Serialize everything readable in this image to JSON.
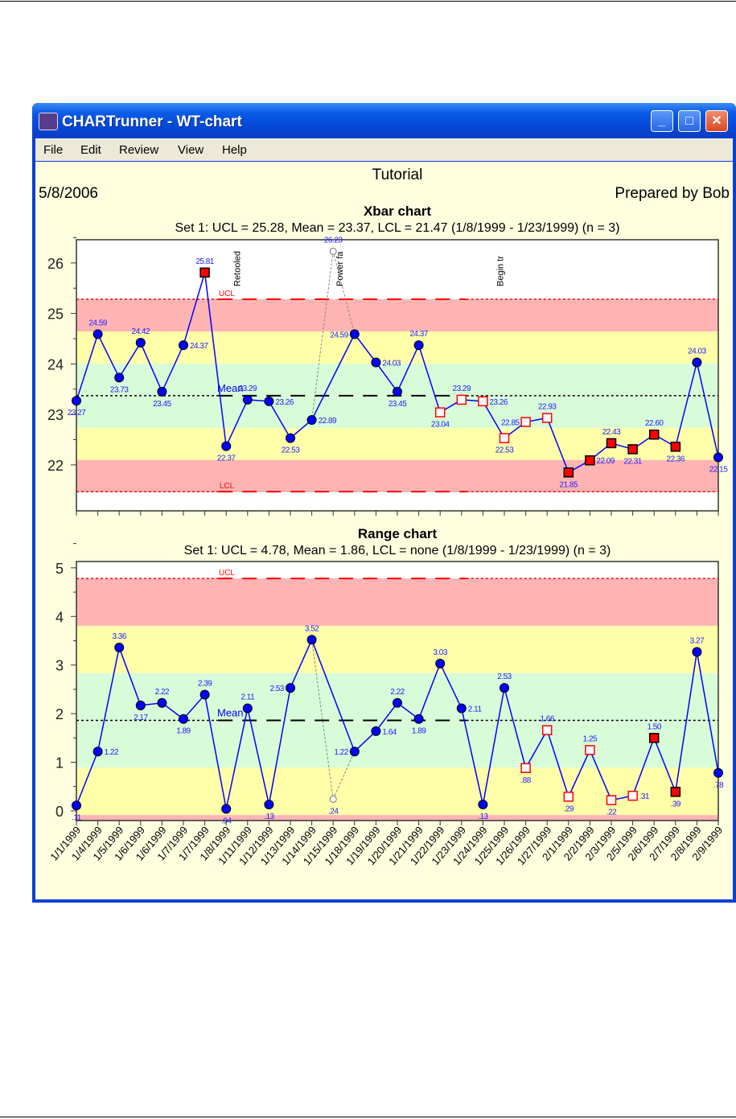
{
  "window": {
    "title": "CHARTrunner - WT-chart",
    "min_icon": "minimize-icon",
    "max_icon": "maximize-icon",
    "close_icon": "close-icon"
  },
  "menu": [
    "File",
    "Edit",
    "Review",
    "View",
    "Help"
  ],
  "header": {
    "title": "Tutorial",
    "date": "5/8/2006",
    "prepared_by": "Prepared by Bob"
  },
  "colors": {
    "zone_red": "#ffb4b4",
    "zone_yellow": "#ffffaa",
    "zone_green": "#d8fcd8",
    "line": "#0000ff",
    "point": "#0000ff",
    "limit": "#ff0000",
    "label": "#2020ff"
  },
  "chart_data": [
    {
      "type": "line",
      "title": "Xbar chart",
      "subtitle": "Set 1: UCL = 25.28, Mean = 23.37, LCL = 21.47 (1/8/1999 - 1/23/1999) (n = 3)",
      "ucl": 25.28,
      "mean": 23.37,
      "lcl": 21.47,
      "ucl_label": "UCL",
      "lcl_label": "LCL",
      "mean_label": "Mean",
      "ylim": [
        21.09,
        26.46
      ],
      "yticks": [
        "22",
        "23",
        "24",
        "25",
        "26"
      ],
      "values": [
        23.27,
        24.59,
        23.73,
        24.42,
        23.45,
        24.37,
        25.81,
        22.37,
        23.29,
        23.26,
        22.53,
        22.89,
        26.23,
        24.59,
        24.03,
        23.45,
        24.37,
        23.04,
        23.29,
        23.26,
        22.53,
        22.85,
        22.93,
        21.85,
        22.09,
        22.43,
        22.31,
        22.6,
        22.36,
        24.03,
        22.15
      ],
      "labels": [
        "23.27",
        "24.59",
        "23.73",
        "24.42",
        "23.45",
        "24.37",
        "25.81",
        "22.37",
        "23.29",
        "23.26",
        "22.53",
        "22.89",
        "26.23",
        "24.59",
        "24.03",
        "23.45",
        "24.37",
        "23.04",
        "23.29",
        "23.26",
        "22.53",
        "22.85",
        "22.93",
        "21.85",
        "22.09",
        "22.43",
        "22.31",
        "22.60",
        "22.36",
        "24.03",
        "22.15"
      ],
      "point_types": [
        "n",
        "n",
        "n",
        "n",
        "n",
        "n",
        "r",
        "n",
        "n",
        "n",
        "n",
        "n",
        "x",
        "n",
        "n",
        "n",
        "n",
        "h",
        "h",
        "h",
        "h",
        "h",
        "h",
        "r",
        "r",
        "r",
        "r",
        "r",
        "r",
        "n",
        "n"
      ],
      "annotations": [
        {
          "index": 7.5,
          "text": "Retooled"
        },
        {
          "index": 12.3,
          "text": "Power fa"
        },
        {
          "index": 19.8,
          "text": "Begin tr"
        }
      ]
    },
    {
      "type": "line",
      "title": "Range chart",
      "subtitle": "Set 1: UCL = 4.78, Mean = 1.86, LCL = none (1/8/1999 - 1/23/1999) (n = 3)",
      "ucl": 4.78,
      "mean": 1.86,
      "lcl": null,
      "ucl_label": "UCL",
      "mean_label": "Mean",
      "ylim": [
        -0.2,
        5.13
      ],
      "yticks": [
        "0",
        "1",
        "2",
        "3",
        "4",
        "5"
      ],
      "values": [
        0.11,
        1.22,
        3.36,
        2.17,
        2.22,
        1.89,
        2.39,
        0.04,
        2.11,
        0.13,
        2.53,
        3.52,
        0.24,
        1.22,
        1.64,
        2.22,
        1.89,
        3.03,
        2.11,
        0.13,
        2.53,
        0.88,
        1.66,
        0.29,
        1.25,
        0.22,
        0.31,
        1.5,
        0.39,
        3.27,
        0.78
      ],
      "labels": [
        ".11",
        "1.22",
        "3.36",
        "2.17",
        "2.22",
        "1.89",
        "2.39",
        ".04",
        "2.11",
        ".13",
        "2.53",
        "3.52",
        ".24",
        "1.22",
        "1.64",
        "2.22",
        "1.89",
        "3.03",
        "2.11",
        ".13",
        "2.53",
        ".88",
        "1.66",
        ".29",
        "1.25",
        ".22",
        ".31",
        "1.50",
        ".39",
        "3.27",
        ".78"
      ],
      "point_types": [
        "n",
        "n",
        "n",
        "n",
        "n",
        "n",
        "n",
        "n",
        "n",
        "n",
        "n",
        "n",
        "x",
        "n",
        "n",
        "n",
        "n",
        "n",
        "n",
        "n",
        "n",
        "h",
        "h",
        "h",
        "h",
        "h",
        "h",
        "r",
        "r",
        "n",
        "n"
      ]
    }
  ],
  "x_labels": [
    "1/1/1999",
    "1/4/1999",
    "1/5/1999",
    "1/6/1999",
    "1/6/1999",
    "1/7/1999",
    "1/7/1999",
    "1/8/1999",
    "1/11/1999",
    "1/12/1999",
    "1/13/1999",
    "1/14/1999",
    "1/15/1999",
    "1/18/1999",
    "1/19/1999",
    "1/20/1999",
    "1/21/1999",
    "1/22/1999",
    "1/23/1999",
    "1/24/1999",
    "1/25/1999",
    "1/26/1999",
    "1/27/1999",
    "2/1/1999",
    "2/2/1999",
    "2/3/1999",
    "2/5/1999",
    "2/6/1999",
    "2/7/1999",
    "2/8/1999",
    "2/9/1999"
  ]
}
